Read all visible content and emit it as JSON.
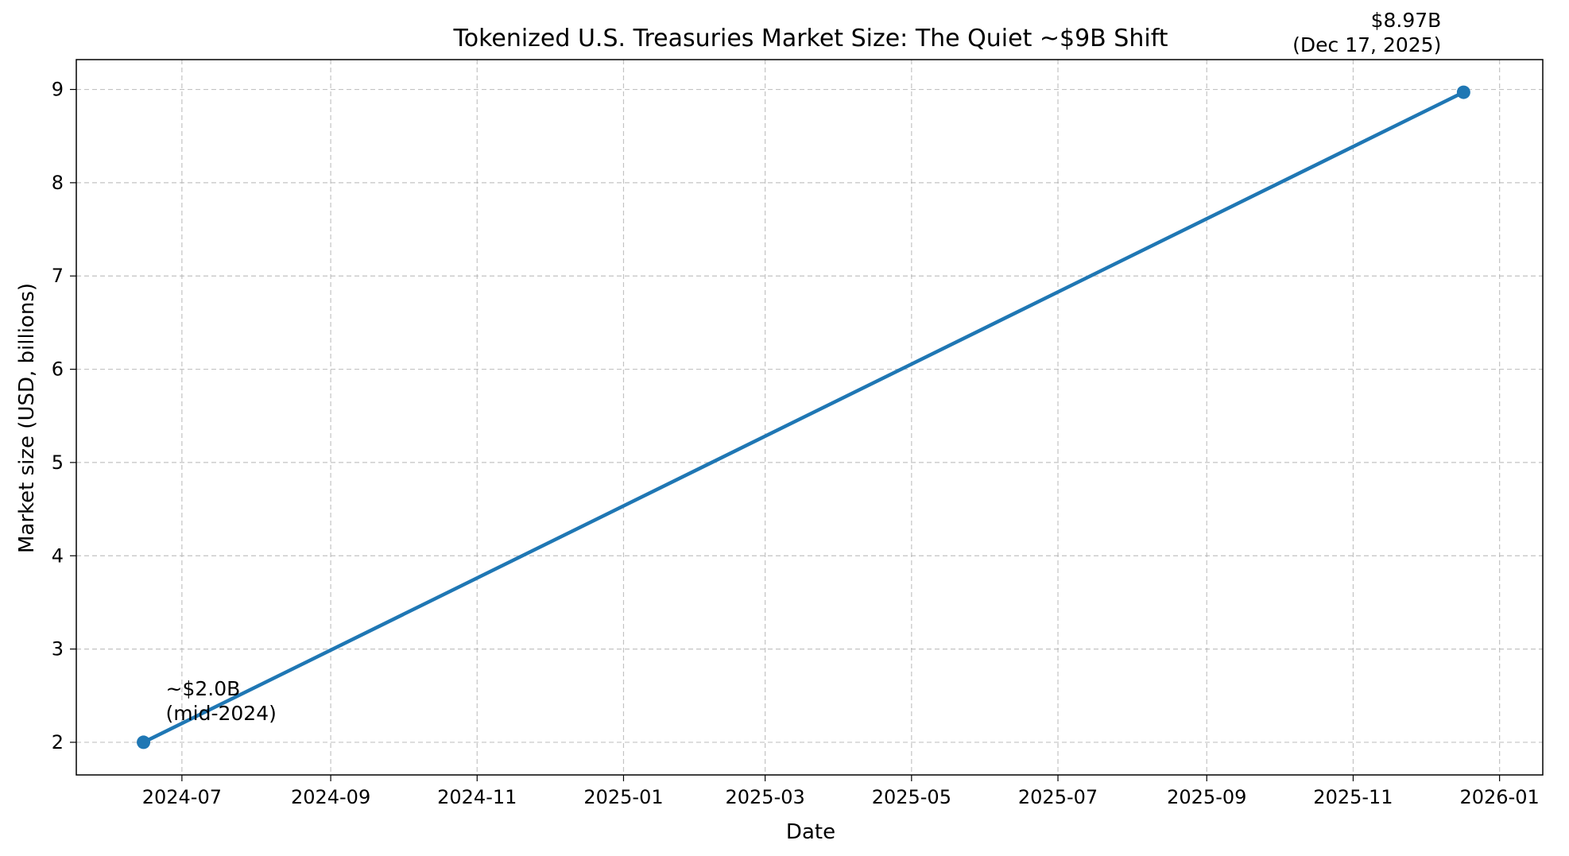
{
  "chart_data": {
    "type": "line",
    "title": "Tokenized U.S. Treasuries Market Size: The Quiet ~$9B Shift",
    "xlabel": "Date",
    "ylabel": "Market size (USD, billions)",
    "x_type": "date",
    "xlim": [
      "2024-05-18",
      "2026-01-19"
    ],
    "ylim": [
      1.65,
      9.32
    ],
    "x_ticks": [
      "2024-07-01",
      "2024-09-01",
      "2024-11-01",
      "2025-01-01",
      "2025-03-01",
      "2025-05-01",
      "2025-07-01",
      "2025-09-01",
      "2025-11-01",
      "2026-01-01"
    ],
    "x_tick_labels": [
      "2024-07",
      "2024-09",
      "2024-11",
      "2025-01",
      "2025-03",
      "2025-05",
      "2025-07",
      "2025-09",
      "2025-11",
      "2026-01"
    ],
    "y_ticks": [
      2,
      3,
      4,
      5,
      6,
      7,
      8,
      9
    ],
    "grid": true,
    "series": [
      {
        "color": "#1f77b4",
        "points": [
          {
            "x": "2024-06-15",
            "y": 2.0
          },
          {
            "x": "2025-12-17",
            "y": 8.97
          }
        ]
      }
    ],
    "annotations": [
      {
        "lines": [
          "~$2.0B",
          "(mid-2024)"
        ],
        "x": "2024-06-15",
        "y": 2.0,
        "anchor": "start"
      },
      {
        "lines": [
          "$8.97B",
          "(Dec 17, 2025)"
        ],
        "x": "2025-12-17",
        "y": 8.97,
        "anchor": "end"
      }
    ]
  }
}
